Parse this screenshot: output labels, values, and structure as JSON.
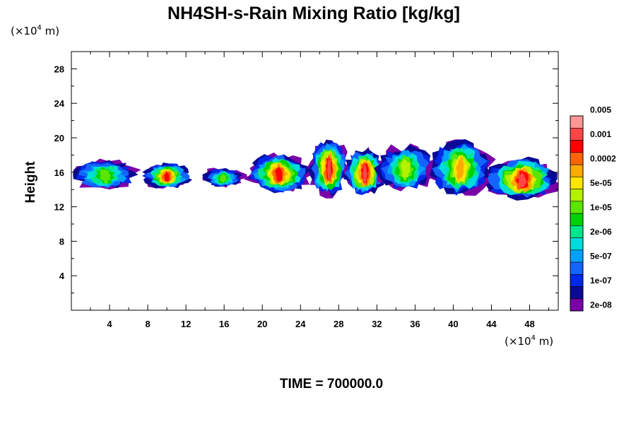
{
  "chart_data": {
    "type": "heatmap",
    "title": "NH4SH-s-Rain Mixing Ratio [kg/kg]",
    "ylabel": "Height",
    "x_unit": "(×10",
    "x_unit_exp": "4",
    "x_unit_tail": " m)",
    "y_unit": "(×10",
    "y_unit_exp": "4",
    "y_unit_tail": " m)",
    "time_label": "TIME = 700000.0",
    "xlim": [
      0,
      51
    ],
    "ylim": [
      0,
      30
    ],
    "x_major_ticks": [
      4,
      8,
      12,
      16,
      20,
      24,
      28,
      32,
      36,
      40,
      44,
      48
    ],
    "x_tick_labels": [
      "4",
      "8",
      "12",
      "16",
      "20",
      "24",
      "28",
      "32",
      "36",
      "40",
      "44",
      "48"
    ],
    "y_major_ticks": [
      4,
      8,
      12,
      16,
      20,
      24,
      28
    ],
    "y_tick_labels": [
      "4",
      "8",
      "12",
      "16",
      "20",
      "24",
      "28"
    ],
    "minor_tick_step": 2,
    "colorbar": {
      "colors": [
        "#7a00a8",
        "#0a0a96",
        "#0028e6",
        "#1464ff",
        "#00a0ff",
        "#00dcdc",
        "#00e68c",
        "#00d200",
        "#5ae600",
        "#b4f000",
        "#ffe600",
        "#ffaa00",
        "#ff6400",
        "#ff0000",
        "#ff4646",
        "#ff9696"
      ],
      "tick_labels": [
        "2e-08",
        "1e-07",
        "5e-07",
        "2e-06",
        "1e-05",
        "5e-05",
        "0.0002",
        "0.001",
        "0.005"
      ]
    },
    "features": [
      {
        "x0": 0.0,
        "x1": 7.0,
        "level_top": 8,
        "ybot": 14.0,
        "ytop": 17.5
      },
      {
        "x0": 7.5,
        "x1": 12.5,
        "level_top": 13,
        "ybot": 14.2,
        "ytop": 17.0
      },
      {
        "x0": 13.8,
        "x1": 18.0,
        "level_top": 8,
        "ybot": 14.3,
        "ytop": 16.5
      },
      {
        "x0": 18.5,
        "x1": 25.0,
        "level_top": 13,
        "ybot": 13.8,
        "ytop": 18.0
      },
      {
        "x0": 25.0,
        "x1": 29.0,
        "level_top": 14,
        "ybot": 13.5,
        "ytop": 19.5
      },
      {
        "x0": 28.5,
        "x1": 33.0,
        "level_top": 14,
        "ybot": 13.5,
        "ytop": 18.5
      },
      {
        "x0": 32.0,
        "x1": 38.0,
        "level_top": 9,
        "ybot": 14.0,
        "ytop": 19.0
      },
      {
        "x0": 37.5,
        "x1": 44.0,
        "level_top": 11,
        "ybot": 13.5,
        "ytop": 19.5
      },
      {
        "x0": 43.5,
        "x1": 51.0,
        "level_top": 14,
        "ybot": 13.0,
        "ytop": 17.5
      }
    ]
  }
}
